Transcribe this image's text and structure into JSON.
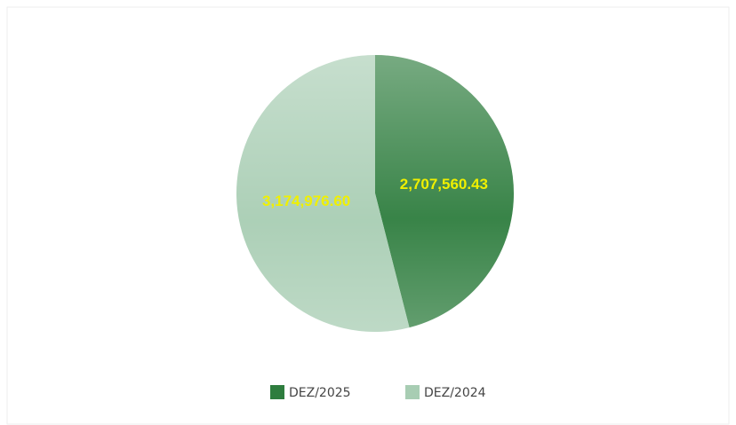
{
  "chart_data": {
    "type": "pie",
    "categories": [
      "DEZ/2025",
      "DEZ/2024"
    ],
    "values": [
      2707560.43,
      3174976.6
    ],
    "value_labels": [
      "2,707,560.43",
      "3,174,976.60"
    ],
    "colors": [
      "#2e7d3e",
      "#a8cdb3"
    ],
    "legend": "bottom"
  }
}
